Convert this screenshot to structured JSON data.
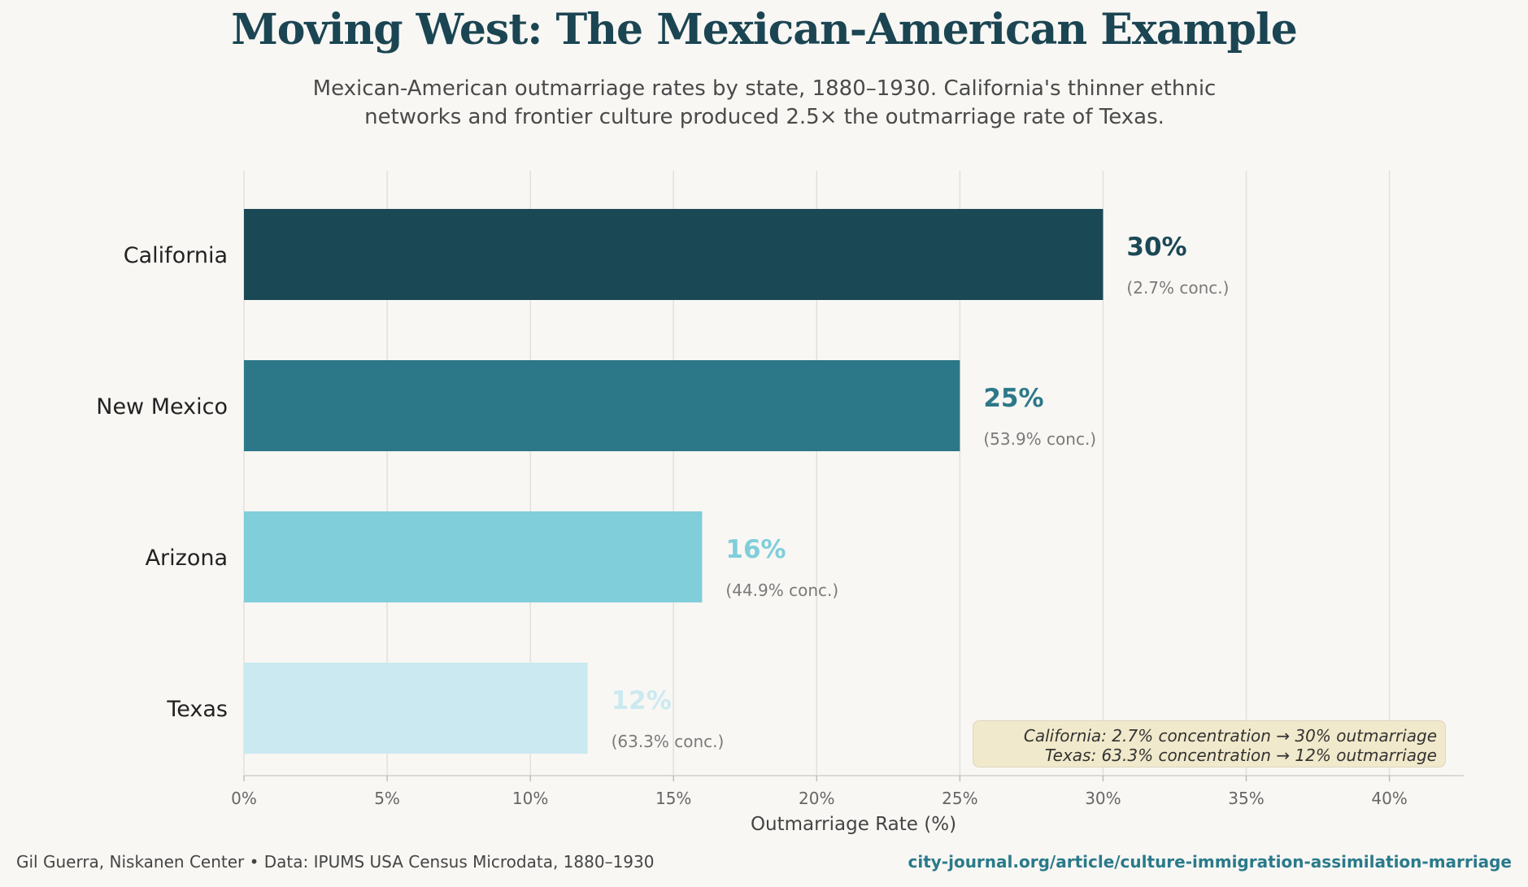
{
  "title": "Moving West: The Mexican-American Example",
  "subtitle_line1": "Mexican-American outmarriage rates by state, 1880–1930. California's thinner ethnic",
  "subtitle_line2": "networks and frontier culture produced 2.5× the outmarriage rate of Texas.",
  "chart_data": {
    "type": "bar",
    "orientation": "horizontal",
    "categories": [
      "California",
      "New Mexico",
      "Arizona",
      "Texas"
    ],
    "values": [
      30,
      25,
      16,
      12
    ],
    "value_labels": [
      "30%",
      "25%",
      "16%",
      "12%"
    ],
    "concentration_labels": [
      "(2.7% conc.)",
      "(53.9% conc.)",
      "(44.9% conc.)",
      "(63.3% conc.)"
    ],
    "colors": [
      "#1b4855",
      "#2c7888",
      "#80ceda",
      "#cbe9f0"
    ],
    "xlabel": "Outmarriage Rate (%)",
    "xlim": [
      0,
      42
    ],
    "xticks": [
      0,
      5,
      10,
      15,
      20,
      25,
      30,
      35,
      40
    ],
    "xtick_labels": [
      "0%",
      "5%",
      "10%",
      "15%",
      "20%",
      "25%",
      "30%",
      "35%",
      "40%"
    ],
    "grid": "vertical"
  },
  "annotation": {
    "line1": "California: 2.7% concentration → 30% outmarriage",
    "line2": "Texas: 63.3% concentration → 12% outmarriage"
  },
  "footer": {
    "left": "Gil Guerra, Niskanen Center  •  Data: IPUMS USA Census Microdata, 1880–1930",
    "right": "city-journal.org/article/culture-immigration-assimilation-marriage"
  }
}
